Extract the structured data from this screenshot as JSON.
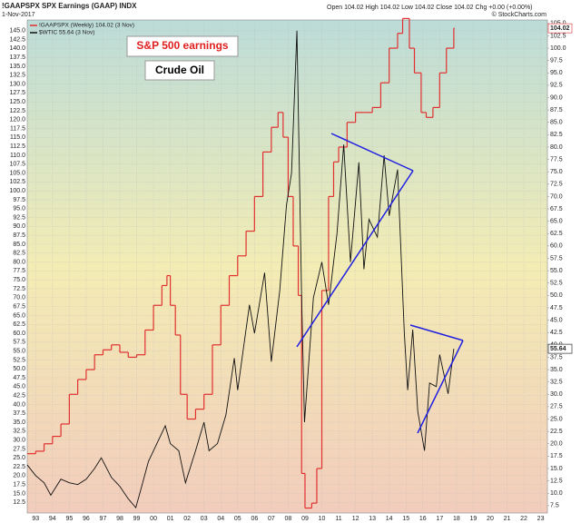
{
  "chart_data": {
    "type": "line",
    "title": "!GAAPSPX SPX Earnings (GAAP) INDX",
    "subtitle": "1-Nov-2017",
    "quote": "Open 104.02  High 104.02  Low 104.02  Close 104.02  Chg +0.00 (+0.00%)",
    "source": "© StockCharts.com",
    "annotations": [
      "S&P 500 earnings",
      "Crude Oil"
    ],
    "grid": true,
    "xlim": [
      1992.5,
      2023.4
    ],
    "xticks": [
      {
        "value": 1993,
        "label": "93"
      },
      {
        "value": 1994,
        "label": "94"
      },
      {
        "value": 1995,
        "label": "95"
      },
      {
        "value": 1996,
        "label": "96"
      },
      {
        "value": 1997,
        "label": "97"
      },
      {
        "value": 1998,
        "label": "98"
      },
      {
        "value": 1999,
        "label": "99"
      },
      {
        "value": 2000,
        "label": "00"
      },
      {
        "value": 2001,
        "label": "01"
      },
      {
        "value": 2002,
        "label": "02"
      },
      {
        "value": 2003,
        "label": "03"
      },
      {
        "value": 2004,
        "label": "04"
      },
      {
        "value": 2005,
        "label": "05"
      },
      {
        "value": 2006,
        "label": "06"
      },
      {
        "value": 2007,
        "label": "07"
      },
      {
        "value": 2008,
        "label": "08"
      },
      {
        "value": 2009,
        "label": "09"
      },
      {
        "value": 2010,
        "label": "10"
      },
      {
        "value": 2011,
        "label": "11"
      },
      {
        "value": 2012,
        "label": "12"
      },
      {
        "value": 2013,
        "label": "13"
      },
      {
        "value": 2014,
        "label": "14"
      },
      {
        "value": 2015,
        "label": "15"
      },
      {
        "value": 2016,
        "label": "16"
      },
      {
        "value": 2017,
        "label": "17"
      },
      {
        "value": 2018,
        "label": "18"
      },
      {
        "value": 2019,
        "label": "19"
      },
      {
        "value": 2020,
        "label": "20"
      },
      {
        "value": 2021,
        "label": "21"
      },
      {
        "value": 2022,
        "label": "22"
      },
      {
        "value": 2023,
        "label": "23"
      }
    ],
    "ylim": [
      9.5,
      148
    ],
    "yticks": [
      12.5,
      {
        "value": 15,
        "label": "15.0"
      },
      17.5,
      {
        "value": 20,
        "label": "20.0"
      },
      22.5,
      {
        "value": 25,
        "label": "25.0"
      },
      27.5,
      {
        "value": 30,
        "label": "30.0"
      },
      32.5,
      {
        "value": 35,
        "label": "35.0"
      },
      37.5,
      {
        "value": 40,
        "label": "40.0"
      },
      42.5,
      {
        "value": 45,
        "label": "45.0"
      },
      47.5,
      {
        "value": 50,
        "label": "50.0"
      },
      52.5,
      {
        "value": 55,
        "label": "55.0"
      },
      57.5,
      {
        "value": 60,
        "label": "60.0"
      },
      62.5,
      {
        "value": 65,
        "label": "65.0"
      },
      67.5,
      {
        "value": 70,
        "label": "70.0"
      },
      72.5,
      {
        "value": 75,
        "label": "75.0"
      },
      77.5,
      {
        "value": 80,
        "label": "80.0"
      },
      82.5,
      {
        "value": 85,
        "label": "85.0"
      },
      87.5,
      {
        "value": 90,
        "label": "90.0"
      },
      92.5,
      {
        "value": 95,
        "label": "95.0"
      },
      97.5,
      {
        "value": 100,
        "label": "100.0"
      },
      102.5,
      {
        "value": 105,
        "label": "105.0"
      },
      107.5,
      {
        "value": 110,
        "label": "110.0"
      },
      112.5,
      {
        "value": 115,
        "label": "115.0"
      },
      117.5,
      {
        "value": 120,
        "label": "120.0"
      },
      122.5,
      {
        "value": 125,
        "label": "125.0"
      },
      127.5,
      {
        "value": 130,
        "label": "130.0"
      },
      132.5,
      {
        "value": 135,
        "label": "135.0"
      },
      137.5,
      {
        "value": 140,
        "label": "140.0"
      },
      142.5,
      {
        "value": 145,
        "label": "145.0"
      }
    ],
    "y2lim": [
      6,
      105.7
    ],
    "y2ticks": [
      7.5,
      {
        "value": 10,
        "label": "10.0"
      },
      12.5,
      {
        "value": 15,
        "label": "15.0"
      },
      17.5,
      {
        "value": 20,
        "label": "20.0"
      },
      22.5,
      {
        "value": 25,
        "label": "25.0"
      },
      27.5,
      {
        "value": 30,
        "label": "30.0"
      },
      32.5,
      {
        "value": 35,
        "label": "35.0"
      },
      37.5,
      {
        "value": 40,
        "label": "40.0"
      },
      42.5,
      {
        "value": 45,
        "label": "45.0"
      },
      47.5,
      {
        "value": 50,
        "label": "50.0"
      },
      52.5,
      {
        "value": 55,
        "label": "55.0"
      },
      57.5,
      {
        "value": 60,
        "label": "60.0"
      },
      62.5,
      {
        "value": 65,
        "label": "65.0"
      },
      67.5,
      {
        "value": 70,
        "label": "70.0"
      },
      72.5,
      {
        "value": 75,
        "label": "75.0"
      },
      77.5,
      {
        "value": 80,
        "label": "80.0"
      },
      82.5,
      {
        "value": 85,
        "label": "85.0"
      },
      87.5,
      {
        "value": 90,
        "label": "90.0"
      },
      92.5,
      {
        "value": 95,
        "label": "95.0"
      },
      97.5,
      {
        "value": 100,
        "label": "100.0"
      },
      102.5,
      {
        "value": 105,
        "label": "105.0"
      }
    ],
    "series": [
      {
        "name": "!GAAPSPX (Weekly) 104.02 (3 Nov)",
        "color": "#e03030",
        "axis": "y2",
        "drawstyle": "steps-post",
        "x": [
          1992.5,
          1993.0,
          1993.5,
          1994.0,
          1994.5,
          1995.0,
          1995.5,
          1996.0,
          1996.5,
          1997.0,
          1997.5,
          1998.0,
          1998.5,
          1999.0,
          1999.5,
          2000.0,
          2000.5,
          2000.8,
          2001.0,
          2001.3,
          2001.6,
          2002.0,
          2002.5,
          2003.0,
          2003.5,
          2004.0,
          2004.5,
          2005.0,
          2005.5,
          2006.0,
          2006.5,
          2007.0,
          2007.4,
          2007.7,
          2008.0,
          2008.3,
          2008.6,
          2008.8,
          2009.0,
          2009.4,
          2009.7,
          2010.0,
          2010.4,
          2010.7,
          2011.0,
          2011.5,
          2012.0,
          2012.5,
          2013.0,
          2013.5,
          2014.0,
          2014.5,
          2014.8,
          2015.2,
          2015.5,
          2015.9,
          2016.2,
          2016.6,
          2017.0,
          2017.4,
          2017.84
        ],
        "values": [
          18,
          18.5,
          20,
          21.5,
          24,
          30,
          33,
          35,
          38,
          39,
          40,
          38.5,
          37.5,
          38,
          43,
          48,
          52,
          54,
          48,
          42,
          30,
          25,
          27,
          30,
          40,
          48,
          54,
          58,
          63,
          70,
          79,
          84,
          87,
          82,
          70,
          60,
          50,
          14,
          7,
          8,
          15,
          51,
          70,
          77,
          80,
          85,
          87,
          87,
          88,
          93,
          100,
          103,
          106,
          100,
          95,
          87,
          86,
          88,
          95,
          100,
          104.02
        ]
      },
      {
        "name": "$WTIC 55.64 (3 Nov)",
        "color": "#111111",
        "axis": "y",
        "x": [
          1992.5,
          1993.0,
          1993.5,
          1993.9,
          1994.5,
          1995.0,
          1995.5,
          1996.0,
          1996.5,
          1996.9,
          1997.5,
          1998.0,
          1998.5,
          1998.95,
          1999.3,
          1999.7,
          2000.0,
          2000.7,
          2001.0,
          2001.5,
          2001.9,
          2002.5,
          2003.0,
          2003.3,
          2003.8,
          2004.3,
          2004.8,
          2005.0,
          2005.7,
          2006.0,
          2006.6,
          2007.0,
          2007.5,
          2007.9,
          2008.2,
          2008.52,
          2008.8,
          2008.97,
          2009.5,
          2010.0,
          2010.4,
          2010.9,
          2011.3,
          2011.7,
          2012.2,
          2012.5,
          2012.8,
          2013.3,
          2013.7,
          2014.0,
          2014.5,
          2014.9,
          2015.1,
          2015.4,
          2015.7,
          2016.1,
          2016.4,
          2016.8,
          2017.0,
          2017.5,
          2017.84
        ],
        "values": [
          23,
          20,
          18,
          14.5,
          19,
          18,
          17.5,
          19,
          22,
          25,
          19.5,
          17,
          13.5,
          11,
          17,
          24,
          27,
          34,
          29,
          27,
          18,
          27,
          35,
          27,
          29,
          37,
          53,
          44,
          68,
          60,
          77,
          52,
          72,
          96,
          105,
          145,
          70,
          35,
          70,
          80,
          68,
          88,
          113,
          80,
          108,
          78,
          92,
          87,
          110,
          93,
          106,
          60,
          44,
          61,
          38,
          27,
          46,
          45,
          54,
          43,
          55.64
        ]
      }
    ]
  }
}
